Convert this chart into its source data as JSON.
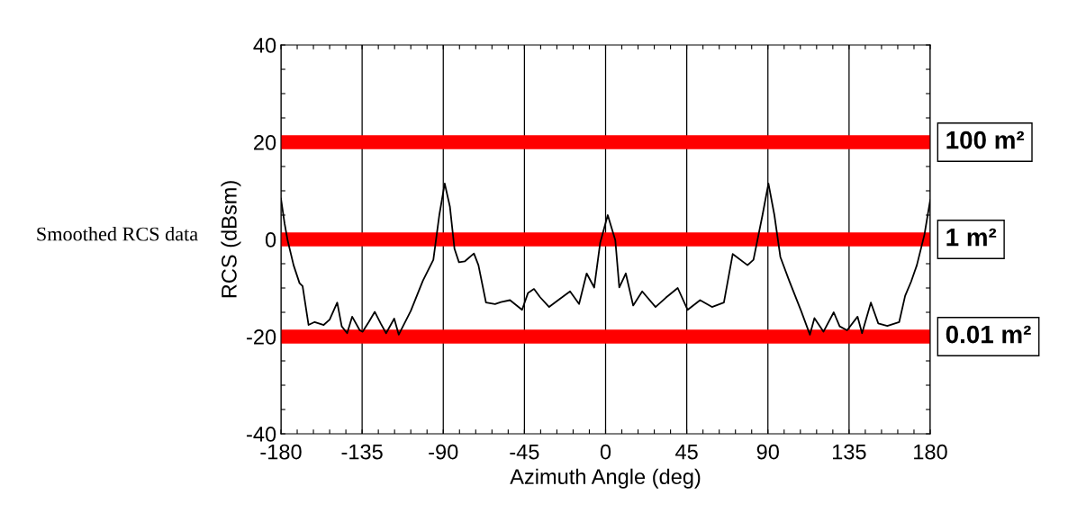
{
  "chart_data": {
    "type": "line",
    "xlabel": "Azimuth Angle (deg)",
    "ylabel": "RCS (dBsm)",
    "annotations": [
      "Smoothed RCS data"
    ],
    "series": [
      {
        "color": "#000000",
        "x": [
          -180,
          -178,
          -176.3,
          -173,
          -169.7,
          -168,
          -164.7,
          -161.3,
          -156.3,
          -153,
          -148.8,
          -146.3,
          -143.3,
          -140.5,
          -136.3,
          -134.7,
          -131.3,
          -128,
          -124.7,
          -121.7,
          -117.2,
          -114.7,
          -108,
          -101.3,
          -95.5,
          -92.2,
          -89.2,
          -86.3,
          -83.8,
          -81.3,
          -78,
          -73,
          -70.5,
          -66.3,
          -61.3,
          -58,
          -53,
          -46.3,
          -43,
          -39.7,
          -36.3,
          -31.3,
          -26.3,
          -19.7,
          -14.7,
          -10.5,
          -6.3,
          -3,
          1.2,
          5.4,
          7.6,
          11.2,
          15.3,
          20.3,
          27.7,
          33.4,
          40,
          45.5,
          52.4,
          59,
          65.6,
          70.5,
          78.7,
          82,
          87,
          90.3,
          93.6,
          96.9,
          101.8,
          108.4,
          113.3,
          115.8,
          120.8,
          126.5,
          129.8,
          133.9,
          139.7,
          142.2,
          147.1,
          151.2,
          156.2,
          162.8,
          166.1,
          169.4,
          172.6,
          176.8,
          180
        ],
        "values": [
          8.4,
          3.3,
          -0.2,
          -5.3,
          -9,
          -9.6,
          -17.6,
          -17,
          -17.6,
          -16.5,
          -13,
          -17.9,
          -19.3,
          -15.9,
          -18.7,
          -19,
          -17,
          -14.9,
          -17.3,
          -19.3,
          -16.3,
          -19.6,
          -14.7,
          -8.5,
          -4.2,
          5,
          11.5,
          6.7,
          -1.9,
          -4.7,
          -4.5,
          -2.9,
          -5.3,
          -13,
          -13.3,
          -12.9,
          -12.5,
          -14.5,
          -11,
          -10.2,
          -11.9,
          -13.9,
          -12.5,
          -10.7,
          -13.3,
          -7,
          -9.9,
          -0.7,
          5,
          -0.2,
          -9.9,
          -7,
          -13.6,
          -10.7,
          -13.9,
          -12,
          -10,
          -14.5,
          -12.5,
          -13.9,
          -13,
          -3,
          -5.3,
          -4.2,
          5,
          11.5,
          5,
          -3.6,
          -8.5,
          -14.7,
          -19.6,
          -16.2,
          -19,
          -15,
          -17.9,
          -18.7,
          -15.9,
          -19.3,
          -13,
          -17.3,
          -17.8,
          -17,
          -11.6,
          -8.7,
          -5.3,
          1,
          8.1
        ]
      }
    ],
    "xlim": [
      -180,
      180
    ],
    "xticks": [
      -180,
      {
        "value": -171,
        "label": null
      },
      {
        "value": -162,
        "label": null
      },
      {
        "value": -153,
        "label": null
      },
      {
        "value": -144,
        "label": null
      },
      -135,
      {
        "value": -126,
        "label": null
      },
      {
        "value": -117,
        "label": null
      },
      {
        "value": -108,
        "label": null
      },
      {
        "value": -99,
        "label": null
      },
      -90,
      {
        "value": -81,
        "label": null
      },
      {
        "value": -72,
        "label": null
      },
      {
        "value": -63,
        "label": null
      },
      {
        "value": -54,
        "label": null
      },
      -45,
      {
        "value": -36,
        "label": null
      },
      {
        "value": -27,
        "label": null
      },
      {
        "value": -18,
        "label": null
      },
      {
        "value": -9,
        "label": null
      },
      0,
      {
        "value": 9,
        "label": null
      },
      {
        "value": 18,
        "label": null
      },
      {
        "value": 27,
        "label": null
      },
      {
        "value": 36,
        "label": null
      },
      45,
      {
        "value": 54,
        "label": null
      },
      {
        "value": 63,
        "label": null
      },
      {
        "value": 72,
        "label": null
      },
      {
        "value": 81,
        "label": null
      },
      90,
      {
        "value": 99,
        "label": null
      },
      {
        "value": 108,
        "label": null
      },
      {
        "value": 117,
        "label": null
      },
      {
        "value": 126,
        "label": null
      },
      135,
      {
        "value": 144,
        "label": null
      },
      {
        "value": 153,
        "label": null
      },
      {
        "value": 162,
        "label": null
      },
      {
        "value": 171,
        "label": null
      },
      180
    ],
    "ylim": [
      -40,
      40
    ],
    "yticks": [
      -40,
      {
        "value": -35,
        "label": null
      },
      {
        "value": -30,
        "label": null
      },
      {
        "value": -25,
        "label": null
      },
      -20,
      {
        "value": -15,
        "label": null
      },
      {
        "value": -10,
        "label": null
      },
      {
        "value": -5,
        "label": null
      },
      0,
      {
        "value": 5,
        "label": null
      },
      {
        "value": 10,
        "label": null
      },
      {
        "value": 15,
        "label": null
      },
      20,
      {
        "value": 25,
        "label": null
      },
      {
        "value": 30,
        "label": null
      },
      {
        "value": 35,
        "label": null
      },
      40
    ],
    "grid": "x",
    "marker": "none",
    "line_style": "solid",
    "ref_lines": [
      {
        "axis": "y",
        "value": 20,
        "label": "100 m²",
        "color": "#ff0000"
      },
      {
        "axis": "y",
        "value": 0,
        "label": "1 m²",
        "color": "#ff0000"
      },
      {
        "axis": "y",
        "value": -20,
        "label": "0.01 m²",
        "color": "#ff0000"
      }
    ]
  }
}
